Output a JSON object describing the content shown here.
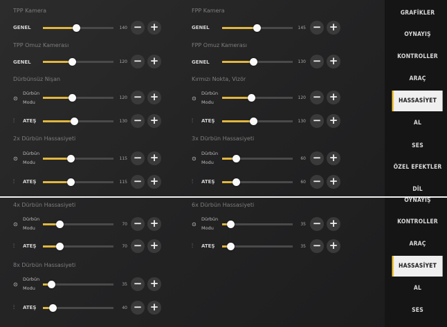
{
  "colors": {
    "accent": "#e2b73e",
    "active_tab_bg": "#efefef"
  },
  "top": {
    "nav": [
      "GRAFİKLER",
      "OYNAYIŞ",
      "KONTROLLER",
      "ARAÇ",
      "HASSASİYET",
      "AL",
      "SES",
      "ÖZEL EFEKTLER",
      "DİL"
    ],
    "nav_active": 4,
    "sections": {
      "tpp_camera": "TPP Kamera",
      "fpp_camera": "FPP Kamera",
      "tpp_shoulder": "TPP Omuz Kamerası",
      "fpp_shoulder": "FPP Omuz Kamerası",
      "no_scope": "Dürbünsüz Nişan",
      "red_dot": "Kırmızı Nokta, Vizör",
      "scope2x": "2x Dürbün Hassasiyeti",
      "scope3x": "3x Dürbün Hassasiyeti"
    },
    "labels": {
      "genel": "GENEL",
      "scope_mode_1": "Dürbün",
      "scope_mode_2": "Modu",
      "fire": "ATEŞ"
    },
    "values": {
      "tpp_genel": "140",
      "fpp_genel": "145",
      "tpp_shoulder": "120",
      "fpp_shoulder": "130",
      "noscope_mode": "120",
      "noscope_fire": "130",
      "reddot_mode": "120",
      "reddot_fire": "130",
      "s2x_mode": "115",
      "s2x_fire": "115",
      "s3x_mode": "60",
      "s3x_fire": "60"
    }
  },
  "bottom": {
    "nav": [
      "OYNAYIŞ",
      "KONTROLLER",
      "ARAÇ",
      "HASSASİYET",
      "AL",
      "SES"
    ],
    "nav_active": 3,
    "sections": {
      "scope4x": "4x Dürbün Hassasiyeti",
      "scope6x": "6x Dürbün Hassasiyeti",
      "scope8x": "8x Dürbün Hassasiyeti"
    },
    "labels": {
      "scope_mode_1": "Dürbün",
      "scope_mode_2": "Modu",
      "fire": "ATEŞ"
    },
    "values": {
      "s4x_mode": "70",
      "s4x_fire": "70",
      "s6x_mode": "35",
      "s6x_fire": "35",
      "s8x_mode": "35",
      "s8x_fire": "40"
    }
  },
  "slider_levels_percent": {
    "tpp_genel": 47,
    "fpp_genel": 49,
    "tpp_shoulder": 41,
    "fpp_shoulder": 44,
    "noscope_mode": 41,
    "noscope_fire": 44,
    "reddot_mode": 41,
    "reddot_fire": 44,
    "s2x_mode": 39,
    "s2x_fire": 39,
    "s3x_mode": 20,
    "s3x_fire": 20,
    "s4x_mode": 24,
    "s4x_fire": 24,
    "s6x_mode": 12,
    "s6x_fire": 12,
    "s8x_mode": 12,
    "s8x_fire": 14
  },
  "buttons": {
    "minus": "−",
    "plus": "+"
  },
  "icons": {
    "scope_mode": "crosshair-icon",
    "fire": "bullet-icon"
  }
}
